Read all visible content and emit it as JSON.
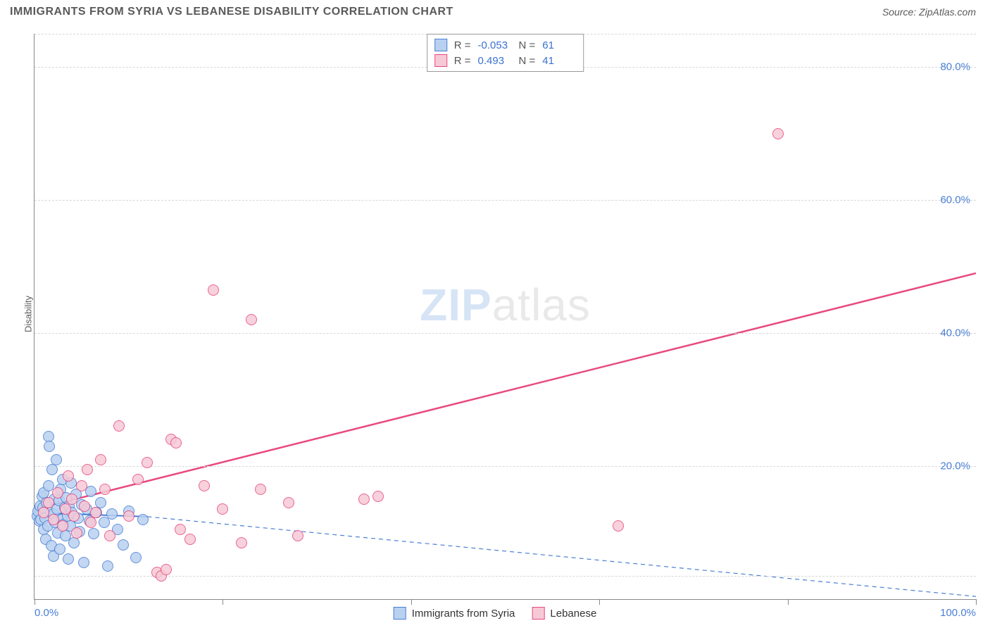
{
  "header": {
    "title": "IMMIGRANTS FROM SYRIA VS LEBANESE DISABILITY CORRELATION CHART",
    "source": "Source: ZipAtlas.com"
  },
  "watermark": {
    "part1": "ZIP",
    "part2": "atlas"
  },
  "chart": {
    "type": "scatter",
    "y_label": "Disability",
    "xlim": [
      0,
      100
    ],
    "ylim": [
      0,
      85
    ],
    "background_color": "#ffffff",
    "grid_color": "#d8d8d8",
    "axis_color": "#888888",
    "tick_label_color": "#4a7fd4",
    "y_ticks": [
      {
        "v": 20,
        "label": "20.0%"
      },
      {
        "v": 40,
        "label": "40.0%"
      },
      {
        "v": 60,
        "label": "60.0%"
      },
      {
        "v": 80,
        "label": "80.0%"
      }
    ],
    "y_grid_extra": [
      3.5,
      85
    ],
    "x_ticks_major": [
      0,
      20,
      40,
      60,
      80,
      100
    ],
    "x_tick_labels": [
      {
        "v": 0,
        "label": "0.0%",
        "cls": "first"
      },
      {
        "v": 100,
        "label": "100.0%",
        "cls": "last"
      }
    ],
    "marker_radius": 8,
    "marker_border_width": 1,
    "series": [
      {
        "id": "syria",
        "label": "Immigrants from Syria",
        "fill": "#b9d1f0",
        "stroke": "#4a7fd4",
        "R_label": "R =",
        "R_value": "-0.053",
        "N_label": "N =",
        "N_value": "61",
        "trend": {
          "solid_end_x": 12,
          "y_at_0": 13.0,
          "y_at_solid_end": 12.4,
          "y_at_100": 0.4,
          "color": "#4a7fd4",
          "width": 2,
          "dash": "6,5"
        },
        "points": [
          [
            0.3,
            12.5
          ],
          [
            0.4,
            13.2
          ],
          [
            0.5,
            11.8
          ],
          [
            0.6,
            14.0
          ],
          [
            0.7,
            12.0
          ],
          [
            0.8,
            15.5
          ],
          [
            0.9,
            13.8
          ],
          [
            1.0,
            10.5
          ],
          [
            1.0,
            16.0
          ],
          [
            1.1,
            12.2
          ],
          [
            1.2,
            9.0
          ],
          [
            1.3,
            14.5
          ],
          [
            1.4,
            11.0
          ],
          [
            1.5,
            17.0
          ],
          [
            1.5,
            24.5
          ],
          [
            1.6,
            23.0
          ],
          [
            1.7,
            13.0
          ],
          [
            1.8,
            8.0
          ],
          [
            1.9,
            19.5
          ],
          [
            2.0,
            12.8
          ],
          [
            2.0,
            6.5
          ],
          [
            2.1,
            15.0
          ],
          [
            2.2,
            11.5
          ],
          [
            2.3,
            21.0
          ],
          [
            2.4,
            13.5
          ],
          [
            2.5,
            10.0
          ],
          [
            2.6,
            14.8
          ],
          [
            2.7,
            7.5
          ],
          [
            2.8,
            16.5
          ],
          [
            2.9,
            12.0
          ],
          [
            3.0,
            18.0
          ],
          [
            3.1,
            11.2
          ],
          [
            3.2,
            13.8
          ],
          [
            3.3,
            9.5
          ],
          [
            3.4,
            15.2
          ],
          [
            3.5,
            12.5
          ],
          [
            3.6,
            6.0
          ],
          [
            3.7,
            14.0
          ],
          [
            3.8,
            11.0
          ],
          [
            3.9,
            17.5
          ],
          [
            4.0,
            13.0
          ],
          [
            4.2,
            8.5
          ],
          [
            4.4,
            15.8
          ],
          [
            4.6,
            12.2
          ],
          [
            4.8,
            10.2
          ],
          [
            5.0,
            14.2
          ],
          [
            5.2,
            5.5
          ],
          [
            5.5,
            13.5
          ],
          [
            5.8,
            11.8
          ],
          [
            6.0,
            16.2
          ],
          [
            6.3,
            9.8
          ],
          [
            6.6,
            13.0
          ],
          [
            7.0,
            14.5
          ],
          [
            7.4,
            11.5
          ],
          [
            7.8,
            5.0
          ],
          [
            8.2,
            12.8
          ],
          [
            8.8,
            10.5
          ],
          [
            9.4,
            8.2
          ],
          [
            10.0,
            13.2
          ],
          [
            10.8,
            6.2
          ],
          [
            11.5,
            12.0
          ]
        ]
      },
      {
        "id": "lebanese",
        "label": "Lebanese",
        "fill": "#f6c9d6",
        "stroke": "#e84a80",
        "R_label": "R =",
        "R_value": "0.493",
        "N_label": "N =",
        "N_value": "41",
        "trend": {
          "y_at_0": 13.5,
          "y_at_100": 49.0,
          "color": "#e84a80",
          "width": 2.5
        },
        "points": [
          [
            1.0,
            13.0
          ],
          [
            1.5,
            14.5
          ],
          [
            2.0,
            12.0
          ],
          [
            2.5,
            16.0
          ],
          [
            3.0,
            11.0
          ],
          [
            3.3,
            13.5
          ],
          [
            3.6,
            18.5
          ],
          [
            4.0,
            15.0
          ],
          [
            4.2,
            12.5
          ],
          [
            4.5,
            10.0
          ],
          [
            5.0,
            17.0
          ],
          [
            5.3,
            14.0
          ],
          [
            5.6,
            19.5
          ],
          [
            6.0,
            11.5
          ],
          [
            6.5,
            13.0
          ],
          [
            7.0,
            21.0
          ],
          [
            7.5,
            16.5
          ],
          [
            8.0,
            9.5
          ],
          [
            9.0,
            26.0
          ],
          [
            10.0,
            12.5
          ],
          [
            11.0,
            18.0
          ],
          [
            12.0,
            20.5
          ],
          [
            13.0,
            4.0
          ],
          [
            13.5,
            3.5
          ],
          [
            14.0,
            4.5
          ],
          [
            14.5,
            24.0
          ],
          [
            15.0,
            23.5
          ],
          [
            15.5,
            10.5
          ],
          [
            16.5,
            9.0
          ],
          [
            18.0,
            17.0
          ],
          [
            19.0,
            46.5
          ],
          [
            20.0,
            13.5
          ],
          [
            22.0,
            8.5
          ],
          [
            23.0,
            42.0
          ],
          [
            24.0,
            16.5
          ],
          [
            27.0,
            14.5
          ],
          [
            28.0,
            9.5
          ],
          [
            35.0,
            15.0
          ],
          [
            62.0,
            11.0
          ],
          [
            79.0,
            70.0
          ],
          [
            36.5,
            15.5
          ]
        ]
      }
    ]
  },
  "legend_bottom": [
    {
      "series": "syria"
    },
    {
      "series": "lebanese"
    }
  ]
}
